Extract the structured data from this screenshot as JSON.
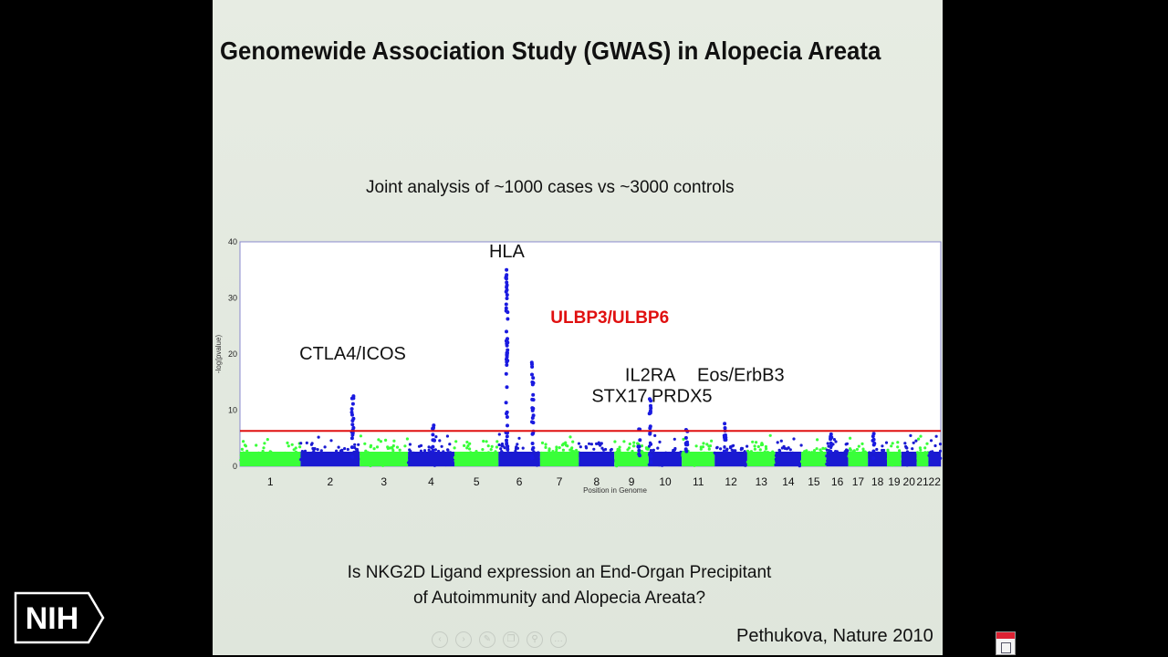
{
  "slide": {
    "title": "Genomewide Association Study (GWAS) in Alopecia Areata",
    "subtitle": "Joint analysis of ~1000 cases vs ~3000 controls",
    "question_line1": "Is NKG2D Ligand expression an End-Organ Precipitant",
    "question_line2": "of Autoimmunity and Alopecia Areata?",
    "citation": "Pethukova, Nature 2010"
  },
  "logo": {
    "text": "NIH"
  },
  "nav_icons": [
    "prev-icon",
    "next-icon",
    "pen-icon",
    "copy-icon",
    "zoom-icon",
    "more-icon"
  ],
  "colors": {
    "chromosome_odd": "#39ff39",
    "chromosome_even": "#1a1ad2",
    "peak": "#1a1ae0",
    "threshold": "#e01010",
    "highlight_label": "#e01010",
    "frame": "#8888cc"
  },
  "chart_data": {
    "type": "scatter",
    "title": "",
    "xlabel": "Position in Genome",
    "ylabel": "-log(pvalue)",
    "ylim": [
      0,
      40
    ],
    "yticks": [
      0,
      10,
      20,
      30,
      40
    ],
    "threshold": 6.3,
    "chromosome_labels": [
      "1",
      "2",
      "3",
      "4",
      "5",
      "6",
      "7",
      "8",
      "9",
      "10",
      "11",
      "12",
      "13",
      "14",
      "15",
      "16",
      "17",
      "18",
      "19",
      "20",
      "21",
      "22"
    ],
    "chromosome_lengths": [
      249,
      243,
      198,
      191,
      181,
      171,
      159,
      146,
      141,
      136,
      135,
      134,
      115,
      107,
      103,
      90,
      81,
      78,
      59,
      63,
      48,
      51
    ],
    "baseline_max": 4.5,
    "peaks": [
      {
        "chromosome": "2",
        "pos": 0.88,
        "max": 12.5
      },
      {
        "chromosome": "4",
        "pos": 0.55,
        "max": 7.3
      },
      {
        "chromosome": "6",
        "pos": 0.2,
        "max": 35
      },
      {
        "chromosome": "6",
        "pos": 0.82,
        "max": 18.5
      },
      {
        "chromosome": "9",
        "pos": 0.72,
        "max": 6.6
      },
      {
        "chromosome": "10",
        "pos": 0.05,
        "max": 12.0
      },
      {
        "chromosome": "11",
        "pos": 0.15,
        "max": 6.5
      },
      {
        "chromosome": "12",
        "pos": 0.32,
        "max": 7.6
      },
      {
        "chromosome": "16",
        "pos": 0.2,
        "max": 5.7
      },
      {
        "chromosome": "18",
        "pos": 0.3,
        "max": 5.8
      }
    ],
    "annotations": [
      {
        "text": "CTLA4/ICOS",
        "chromosome": "2",
        "pos": 0.88,
        "y": 19,
        "highlight": false
      },
      {
        "text": "HLA",
        "chromosome": "6",
        "pos": 0.2,
        "y": 37.2,
        "highlight": false
      },
      {
        "text": "ULBP3/ULBP6",
        "chromosome": "6",
        "pos": 1.25,
        "y": 25.5,
        "highlight": true
      },
      {
        "text": "IL2RA",
        "chromosome": "10",
        "pos": 0.05,
        "y": 15.2,
        "highlight": false
      },
      {
        "text": "STX17",
        "chromosome": "9",
        "pos": 0.15,
        "y": 11.5,
        "highlight": false
      },
      {
        "text": "PRDX5",
        "chromosome": "11",
        "pos": 0.0,
        "y": 11.5,
        "highlight": false
      },
      {
        "text": "Eos/ErbB3",
        "chromosome": "12",
        "pos": 0.8,
        "y": 15.2,
        "highlight": false
      }
    ]
  }
}
